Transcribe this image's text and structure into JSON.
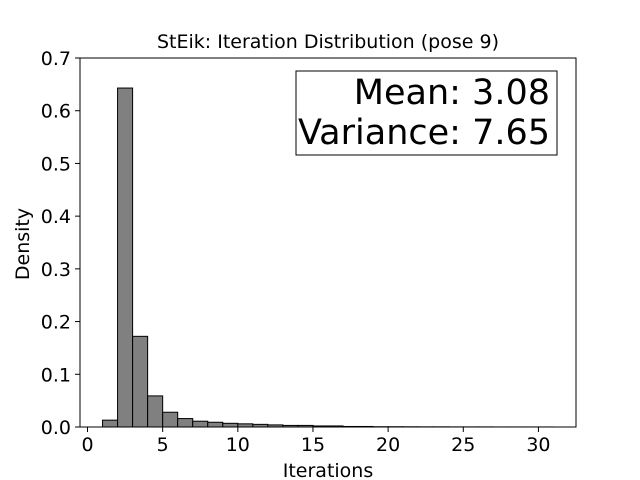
{
  "chart_data": {
    "type": "bar",
    "title": "StEik: Iteration Distribution (pose 9)",
    "xlabel": "Iterations",
    "ylabel": "Density",
    "xlim": [
      -0.5,
      32.5
    ],
    "ylim": [
      0,
      0.7
    ],
    "xticks": [
      0,
      5,
      10,
      15,
      20,
      25,
      30
    ],
    "yticks": [
      0.0,
      0.1,
      0.2,
      0.3,
      0.4,
      0.5,
      0.6,
      0.7
    ],
    "grid": false,
    "bar_color": "#808080",
    "edge_color": "#000000",
    "bins": [
      {
        "x0": 1.0,
        "x1": 2.0,
        "density": 0.013
      },
      {
        "x0": 2.0,
        "x1": 3.0,
        "density": 0.643
      },
      {
        "x0": 3.0,
        "x1": 4.0,
        "density": 0.172
      },
      {
        "x0": 4.0,
        "x1": 5.0,
        "density": 0.059
      },
      {
        "x0": 5.0,
        "x1": 6.0,
        "density": 0.028
      },
      {
        "x0": 6.0,
        "x1": 7.0,
        "density": 0.016
      },
      {
        "x0": 7.0,
        "x1": 8.0,
        "density": 0.011
      },
      {
        "x0": 8.0,
        "x1": 9.0,
        "density": 0.009
      },
      {
        "x0": 9.0,
        "x1": 10.0,
        "density": 0.007
      },
      {
        "x0": 10.0,
        "x1": 11.0,
        "density": 0.006
      },
      {
        "x0": 11.0,
        "x1": 12.0,
        "density": 0.005
      },
      {
        "x0": 12.0,
        "x1": 13.0,
        "density": 0.004
      },
      {
        "x0": 13.0,
        "x1": 14.0,
        "density": 0.003
      },
      {
        "x0": 14.0,
        "x1": 15.0,
        "density": 0.003
      },
      {
        "x0": 15.0,
        "x1": 16.0,
        "density": 0.002
      },
      {
        "x0": 16.0,
        "x1": 17.0,
        "density": 0.002
      },
      {
        "x0": 17.0,
        "x1": 18.0,
        "density": 0.001
      },
      {
        "x0": 18.0,
        "x1": 19.0,
        "density": 0.001
      },
      {
        "x0": 19.0,
        "x1": 20.0,
        "density": 0.0005
      },
      {
        "x0": 20.0,
        "x1": 21.0,
        "density": 0.0005
      },
      {
        "x0": 21.0,
        "x1": 22.0,
        "density": 0.0004
      },
      {
        "x0": 22.0,
        "x1": 23.0,
        "density": 0.0003
      },
      {
        "x0": 23.0,
        "x1": 24.0,
        "density": 0.0003
      },
      {
        "x0": 24.0,
        "x1": 25.0,
        "density": 0.0002
      },
      {
        "x0": 25.0,
        "x1": 26.0,
        "density": 0.0002
      },
      {
        "x0": 26.0,
        "x1": 27.0,
        "density": 0.0002
      },
      {
        "x0": 27.0,
        "x1": 28.0,
        "density": 0.0001
      },
      {
        "x0": 28.0,
        "x1": 29.0,
        "density": 0.0001
      },
      {
        "x0": 29.0,
        "x1": 30.0,
        "density": 0.0001
      },
      {
        "x0": 30.0,
        "x1": 31.0,
        "density": 0.0001
      }
    ],
    "annotation": {
      "lines": [
        "Mean: 3.08",
        "Variance: 7.65"
      ],
      "placement": "top-right"
    }
  }
}
